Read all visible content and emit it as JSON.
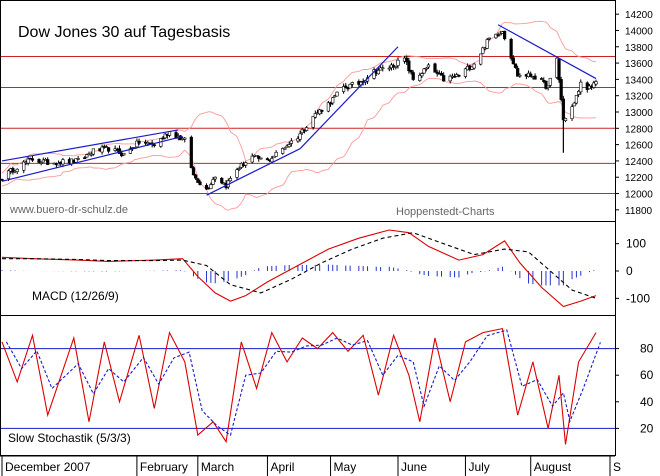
{
  "chart_data": [
    {
      "panel": "price",
      "type": "candlestick",
      "title": "Dow Jones 30 auf Tagesbasis",
      "source_left": "www.buero-dr-schulz.de",
      "source_right": "Hoppenstedt-Charts",
      "ylim": [
        11700,
        14300
      ],
      "yticks": [
        11800,
        12000,
        12200,
        12400,
        12600,
        12800,
        13000,
        13200,
        13400,
        13600,
        13800,
        14000,
        14200
      ],
      "horizontal_lines": [
        13680,
        13300,
        12800,
        12370,
        12000
      ],
      "bollinger_bands": true,
      "trendlines": [
        {
          "from": [
            "2006-12-01",
            12400
          ],
          "to": [
            "2007-02-20",
            12780
          ],
          "color": "#1a1acc"
        },
        {
          "from": [
            "2006-12-01",
            12150
          ],
          "to": [
            "2007-02-22",
            12700
          ],
          "color": "#1a1acc"
        },
        {
          "from": [
            "2007-03-05",
            11980
          ],
          "to": [
            "2007-04-17",
            12550
          ],
          "color": "#1a1acc"
        },
        {
          "from": [
            "2007-04-17",
            12550
          ],
          "to": [
            "2007-06-01",
            13800
          ],
          "color": "#1a1acc"
        },
        {
          "from": [
            "2007-07-17",
            14070
          ],
          "to": [
            "2007-08-31",
            13410
          ],
          "color": "#1a1acc"
        }
      ],
      "ohlc_close_path": [
        [
          "2006-12-01",
          12200
        ],
        [
          "2006-12-08",
          12330
        ],
        [
          "2006-12-15",
          12420
        ],
        [
          "2006-12-22",
          12380
        ],
        [
          "2007-01-05",
          12400
        ],
        [
          "2007-01-12",
          12520
        ],
        [
          "2007-01-19",
          12550
        ],
        [
          "2007-01-26",
          12480
        ],
        [
          "2007-02-02",
          12630
        ],
        [
          "2007-02-09",
          12600
        ],
        [
          "2007-02-16",
          12760
        ],
        [
          "2007-02-23",
          12650
        ],
        [
          "2007-02-27",
          12220
        ],
        [
          "2007-03-05",
          12050
        ],
        [
          "2007-03-09",
          12220
        ],
        [
          "2007-03-14",
          12100
        ],
        [
          "2007-03-19",
          12300
        ],
        [
          "2007-03-26",
          12450
        ],
        [
          "2007-04-02",
          12400
        ],
        [
          "2007-04-09",
          12550
        ],
        [
          "2007-04-16",
          12700
        ],
        [
          "2007-04-23",
          12950
        ],
        [
          "2007-04-30",
          13100
        ],
        [
          "2007-05-07",
          13300
        ],
        [
          "2007-05-14",
          13350
        ],
        [
          "2007-05-21",
          13500
        ],
        [
          "2007-05-28",
          13550
        ],
        [
          "2007-06-04",
          13650
        ],
        [
          "2007-06-08",
          13400
        ],
        [
          "2007-06-15",
          13550
        ],
        [
          "2007-06-22",
          13400
        ],
        [
          "2007-06-29",
          13450
        ],
        [
          "2007-07-06",
          13600
        ],
        [
          "2007-07-13",
          13900
        ],
        [
          "2007-07-19",
          14000
        ],
        [
          "2007-07-26",
          13450
        ],
        [
          "2007-08-02",
          13450
        ],
        [
          "2007-08-09",
          13300
        ],
        [
          "2007-08-13",
          13650
        ],
        [
          "2007-08-16",
          12900
        ],
        [
          "2007-08-21",
          13100
        ],
        [
          "2007-08-24",
          13350
        ],
        [
          "2007-08-29",
          13280
        ],
        [
          "2007-08-31",
          13380
        ]
      ]
    },
    {
      "panel": "macd",
      "type": "line",
      "label": "MACD (12/26/9)",
      "ylim": [
        -150,
        150
      ],
      "yticks": [
        100,
        0,
        -100
      ],
      "series": [
        {
          "role": "macd",
          "color": "#dd0000",
          "style": "solid",
          "points": [
            [
              "2006-12-01",
              50
            ],
            [
              "2006-12-15",
              45
            ],
            [
              "2007-01-05",
              40
            ],
            [
              "2007-01-19",
              35
            ],
            [
              "2007-02-09",
              40
            ],
            [
              "2007-02-22",
              45
            ],
            [
              "2007-03-01",
              -20
            ],
            [
              "2007-03-09",
              -80
            ],
            [
              "2007-03-16",
              -110
            ],
            [
              "2007-03-23",
              -90
            ],
            [
              "2007-04-02",
              -40
            ],
            [
              "2007-04-16",
              20
            ],
            [
              "2007-04-30",
              80
            ],
            [
              "2007-05-14",
              120
            ],
            [
              "2007-05-28",
              150
            ],
            [
              "2007-06-06",
              140
            ],
            [
              "2007-06-15",
              90
            ],
            [
              "2007-06-29",
              40
            ],
            [
              "2007-07-10",
              60
            ],
            [
              "2007-07-20",
              110
            ],
            [
              "2007-07-27",
              30
            ],
            [
              "2007-08-06",
              -60
            ],
            [
              "2007-08-16",
              -130
            ],
            [
              "2007-08-24",
              -110
            ],
            [
              "2007-08-31",
              -90
            ]
          ]
        },
        {
          "role": "signal",
          "color": "#000000",
          "style": "dashed",
          "points": [
            [
              "2006-12-01",
              45
            ],
            [
              "2006-12-15",
              45
            ],
            [
              "2007-01-05",
              42
            ],
            [
              "2007-01-19",
              38
            ],
            [
              "2007-02-09",
              38
            ],
            [
              "2007-02-22",
              40
            ],
            [
              "2007-03-05",
              20
            ],
            [
              "2007-03-16",
              -50
            ],
            [
              "2007-03-30",
              -80
            ],
            [
              "2007-04-13",
              -30
            ],
            [
              "2007-04-27",
              30
            ],
            [
              "2007-05-11",
              80
            ],
            [
              "2007-05-25",
              120
            ],
            [
              "2007-06-08",
              140
            ],
            [
              "2007-06-22",
              100
            ],
            [
              "2007-07-06",
              60
            ],
            [
              "2007-07-20",
              80
            ],
            [
              "2007-07-31",
              70
            ],
            [
              "2007-08-10",
              0
            ],
            [
              "2007-08-20",
              -70
            ],
            [
              "2007-08-31",
              -100
            ]
          ]
        }
      ]
    },
    {
      "panel": "stochastic",
      "type": "line",
      "label": "Slow Stochastik (5/3/3)",
      "ylim": [
        0,
        100
      ],
      "yticks": [
        80,
        60,
        40,
        20
      ],
      "reference_lines": [
        80,
        20
      ],
      "series": [
        {
          "role": "%K",
          "color": "#dd0000",
          "style": "solid"
        },
        {
          "role": "%D",
          "color": "#1a1acc",
          "style": "dashed"
        }
      ],
      "approx_cycle_values": [
        [
          "2006-12-01",
          85
        ],
        [
          "2006-12-08",
          55
        ],
        [
          "2006-12-15",
          90
        ],
        [
          "2006-12-22",
          30
        ],
        [
          "2007-01-03",
          88
        ],
        [
          "2007-01-10",
          25
        ],
        [
          "2007-01-17",
          85
        ],
        [
          "2007-01-24",
          40
        ],
        [
          "2007-02-02",
          90
        ],
        [
          "2007-02-09",
          35
        ],
        [
          "2007-02-16",
          92
        ],
        [
          "2007-02-23",
          70
        ],
        [
          "2007-03-01",
          15
        ],
        [
          "2007-03-08",
          25
        ],
        [
          "2007-03-14",
          10
        ],
        [
          "2007-03-21",
          85
        ],
        [
          "2007-03-28",
          50
        ],
        [
          "2007-04-04",
          92
        ],
        [
          "2007-04-11",
          70
        ],
        [
          "2007-04-18",
          88
        ],
        [
          "2007-04-25",
          80
        ],
        [
          "2007-05-02",
          92
        ],
        [
          "2007-05-09",
          78
        ],
        [
          "2007-05-16",
          90
        ],
        [
          "2007-05-23",
          45
        ],
        [
          "2007-05-30",
          90
        ],
        [
          "2007-06-06",
          60
        ],
        [
          "2007-06-11",
          25
        ],
        [
          "2007-06-18",
          88
        ],
        [
          "2007-06-25",
          40
        ],
        [
          "2007-07-02",
          85
        ],
        [
          "2007-07-10",
          92
        ],
        [
          "2007-07-19",
          95
        ],
        [
          "2007-07-26",
          30
        ],
        [
          "2007-08-02",
          70
        ],
        [
          "2007-08-09",
          20
        ],
        [
          "2007-08-14",
          60
        ],
        [
          "2007-08-17",
          8
        ],
        [
          "2007-08-23",
          70
        ],
        [
          "2007-08-31",
          92
        ]
      ]
    }
  ],
  "x_axis": {
    "labels": [
      "December 2007",
      "February",
      "March",
      "April",
      "May",
      "June",
      "July",
      "August",
      "S"
    ],
    "label_dates": [
      "2006-12-01",
      "2007-02-01",
      "2007-03-01",
      "2007-04-02",
      "2007-05-01",
      "2007-06-01",
      "2007-07-02",
      "2007-08-01",
      "2007-09-04"
    ]
  },
  "colors": {
    "candle": "#000000",
    "hline": "#cc2222",
    "bollinger": "#ff9999",
    "trendline": "#1a1acc",
    "macd_hist": "#2233cc",
    "stoch_ref": "#1a1acc"
  }
}
